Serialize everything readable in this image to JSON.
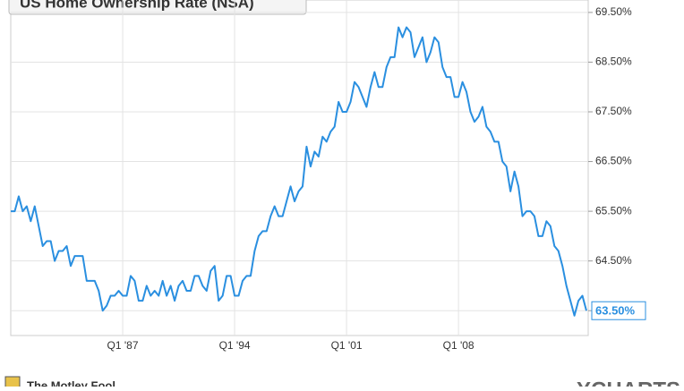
{
  "chart_data": {
    "type": "line",
    "title": "US Home Ownership Rate (NSA)",
    "publisher": "The Motley Fool",
    "source": "YCHARTS",
    "categories": [
      null,
      null,
      null,
      null,
      null,
      null,
      null,
      null,
      null,
      null,
      null,
      null,
      null,
      null,
      null,
      null,
      null,
      null,
      null,
      null,
      null,
      null,
      null,
      null,
      null,
      null,
      null,
      null,
      "Q1 '87",
      null,
      null,
      null,
      null,
      null,
      null,
      null,
      null,
      null,
      null,
      null,
      null,
      null,
      null,
      null,
      null,
      null,
      null,
      null,
      null,
      null,
      null,
      null,
      null,
      null,
      null,
      null,
      "Q1 '94",
      null,
      null,
      null,
      null,
      null,
      null,
      null,
      null,
      null,
      null,
      null,
      null,
      null,
      null,
      null,
      null,
      null,
      null,
      null,
      null,
      null,
      null,
      null,
      null,
      null,
      null,
      null,
      "Q1 '01",
      null,
      null,
      null,
      null,
      null,
      null,
      null,
      null,
      null,
      null,
      null,
      null,
      null,
      null,
      null,
      null,
      null,
      null,
      null,
      null,
      null,
      null,
      null,
      null,
      null,
      null,
      null,
      "Q1 '08",
      null,
      null,
      null,
      null,
      null,
      null,
      null,
      null,
      null,
      null,
      null,
      null,
      null,
      null,
      null,
      null,
      null,
      null,
      null,
      null,
      null,
      null,
      null,
      null,
      null,
      null,
      null,
      null,
      null,
      null,
      null,
      null
    ],
    "series": [
      {
        "name": "US Home Ownership Rate (NSA)",
        "color": "#2a8fe0",
        "values": [
          65.5,
          65.5,
          65.8,
          65.5,
          65.6,
          65.3,
          65.6,
          65.2,
          64.8,
          64.9,
          64.9,
          64.5,
          64.7,
          64.7,
          64.8,
          64.4,
          64.6,
          64.6,
          64.6,
          64.1,
          64.1,
          64.1,
          63.9,
          63.5,
          63.6,
          63.8,
          63.8,
          63.9,
          63.8,
          63.8,
          64.2,
          64.1,
          63.7,
          63.7,
          64.0,
          63.8,
          63.9,
          63.8,
          64.1,
          63.8,
          64.0,
          63.7,
          64.0,
          64.1,
          63.9,
          63.9,
          64.2,
          64.2,
          64.0,
          63.9,
          64.3,
          64.4,
          63.7,
          63.8,
          64.2,
          64.2,
          63.8,
          63.8,
          64.1,
          64.2,
          64.2,
          64.7,
          65.0,
          65.1,
          65.1,
          65.4,
          65.6,
          65.4,
          65.4,
          65.7,
          66.0,
          65.7,
          65.9,
          66.0,
          66.8,
          66.4,
          66.7,
          66.6,
          67.0,
          66.9,
          67.1,
          67.2,
          67.7,
          67.5,
          67.5,
          67.7,
          68.1,
          68.0,
          67.8,
          67.6,
          68.0,
          68.3,
          68.0,
          68.0,
          68.4,
          68.6,
          68.6,
          69.2,
          69.0,
          69.2,
          69.1,
          68.6,
          68.8,
          69.0,
          68.5,
          68.7,
          69.0,
          68.9,
          68.4,
          68.2,
          68.2,
          67.8,
          67.8,
          68.1,
          67.9,
          67.5,
          67.3,
          67.4,
          67.6,
          67.2,
          67.1,
          66.9,
          66.9,
          66.5,
          66.4,
          65.9,
          66.3,
          66.0,
          65.4,
          65.5,
          65.5,
          65.4,
          65.0,
          65.0,
          65.3,
          65.2,
          64.8,
          64.7,
          64.4,
          64.0,
          63.7,
          63.4,
          63.7,
          63.8,
          63.5
        ],
        "value_labels": [
          null,
          null,
          null,
          null,
          null,
          null,
          null,
          null,
          null,
          null,
          null,
          null,
          null,
          null,
          null,
          null,
          null,
          null,
          null,
          null,
          null,
          null,
          null,
          null,
          null,
          null,
          null,
          null,
          null,
          null,
          null,
          null,
          null,
          null,
          null,
          null,
          null,
          null,
          null,
          null,
          null,
          null,
          null,
          null,
          null,
          null,
          null,
          null,
          null,
          null,
          null,
          null,
          null,
          null,
          null,
          null,
          null,
          null,
          null,
          null,
          null,
          null,
          null,
          null,
          null,
          null,
          null,
          null,
          null,
          null,
          null,
          null,
          null,
          null,
          null,
          null,
          null,
          null,
          null,
          null,
          null,
          null,
          null,
          null,
          null,
          null,
          null,
          null,
          null,
          null,
          null,
          null,
          null,
          null,
          null,
          null,
          null,
          null,
          null,
          null,
          null,
          null,
          null,
          null,
          null,
          null,
          null,
          null,
          null,
          null,
          null,
          null,
          null,
          null,
          null,
          null,
          null,
          null,
          null,
          null,
          null,
          null,
          null,
          null,
          null,
          null,
          null,
          null,
          null,
          null,
          null,
          null,
          null,
          null,
          null,
          null,
          null,
          null,
          null,
          null,
          null,
          null,
          null,
          null,
          "63.50%"
        ]
      }
    ],
    "ylim": [
      63.0,
      69.75
    ],
    "yticks": [
      {
        "value": 63.5,
        "label": "63.50%"
      },
      {
        "value": 64.5,
        "label": "64.50%"
      },
      {
        "value": 65.5,
        "label": "65.50%"
      },
      {
        "value": 66.5,
        "label": "66.50%"
      },
      {
        "value": 67.5,
        "label": "67.50%"
      },
      {
        "value": 68.5,
        "label": "68.50%"
      },
      {
        "value": 69.5,
        "label": "69.50%"
      }
    ],
    "grid": true
  }
}
